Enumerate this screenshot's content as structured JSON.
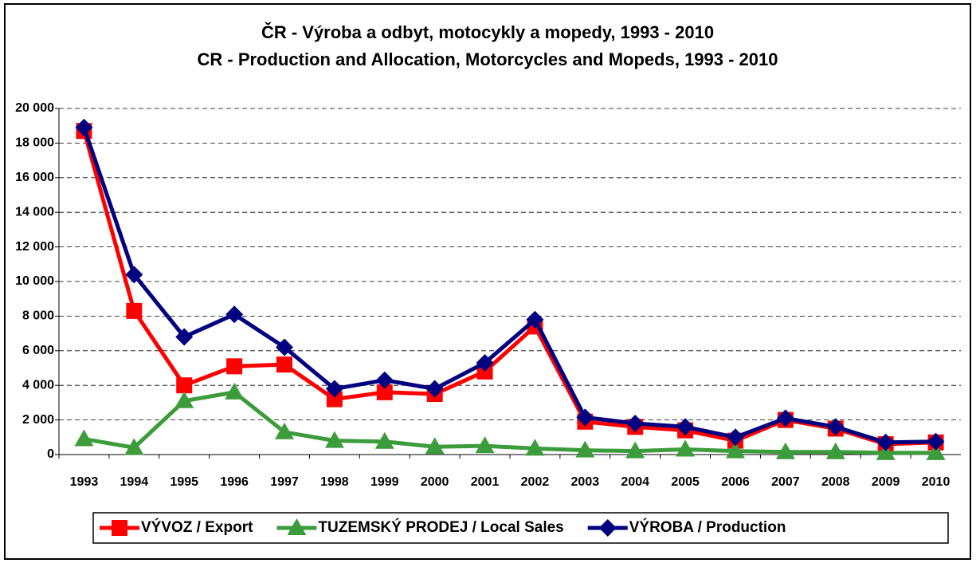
{
  "chart_data": {
    "type": "line",
    "title": [
      "ČR - Výroba a odbyt, motocykly a mopedy, 1993 - 2010",
      "CR - Production and Allocation, Motorcycles and Mopeds, 1993 - 2010"
    ],
    "categories": [
      "1993",
      "1994",
      "1995",
      "1996",
      "1997",
      "1998",
      "1999",
      "2000",
      "2001",
      "2002",
      "2003",
      "2004",
      "2005",
      "2006",
      "2007",
      "2008",
      "2009",
      "2010"
    ],
    "series": [
      {
        "name": "VÝVOZ / Export",
        "color": "#ff0000",
        "marker": "square",
        "values": [
          18700,
          8300,
          4000,
          5100,
          5200,
          3200,
          3600,
          3500,
          4800,
          7400,
          1900,
          1600,
          1400,
          800,
          2000,
          1500,
          600,
          700
        ]
      },
      {
        "name": "TUZEMSKÝ PRODEJ / Local Sales",
        "color": "#3c9c3c",
        "marker": "triangle",
        "values": [
          900,
          400,
          3100,
          3600,
          1300,
          800,
          750,
          450,
          500,
          350,
          250,
          200,
          300,
          200,
          150,
          150,
          100,
          100
        ]
      },
      {
        "name": "VÝROBA / Production",
        "color": "#000080",
        "marker": "diamond",
        "values": [
          18900,
          10400,
          6800,
          8100,
          6200,
          3800,
          4300,
          3800,
          5300,
          7800,
          2150,
          1800,
          1600,
          1000,
          2100,
          1600,
          700,
          750
        ]
      }
    ],
    "ylim": [
      0,
      20000
    ],
    "yticks": [
      0,
      {
        "value": 2000,
        "label": "2 000"
      },
      {
        "value": 4000,
        "label": "4 000"
      },
      {
        "value": 6000,
        "label": "6 000"
      },
      {
        "value": 8000,
        "label": "8 000"
      },
      {
        "value": 10000,
        "label": "10 000"
      },
      {
        "value": 12000,
        "label": "12 000"
      },
      {
        "value": 14000,
        "label": "14 000"
      },
      {
        "value": 16000,
        "label": "16 000"
      },
      {
        "value": 18000,
        "label": "18 000"
      },
      {
        "value": 20000,
        "label": "20 000"
      }
    ],
    "grid": true,
    "legend": "bottom"
  }
}
